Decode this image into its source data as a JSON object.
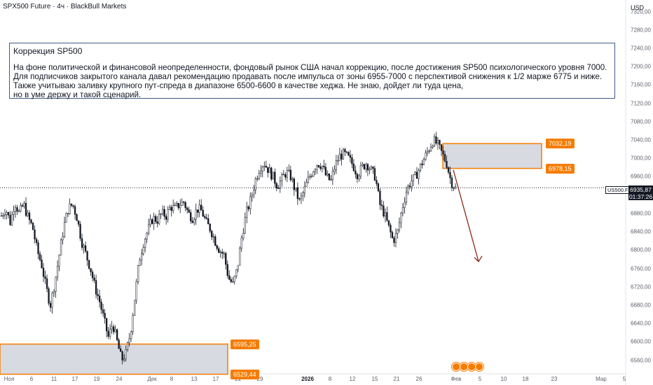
{
  "header": {
    "symbol_title": "SPX500 Future · 4ч · BlackBull Markets",
    "currency": "USD"
  },
  "note": {
    "title": "Коррекция SP500",
    "body": "На фоне политической и финансовой неопределенности, фондовый рынок США начал коррекцию, после достижения SP500 психологического уровня 7000. Для подписчиков закрытого канала давал рекомендацию продавать после импульса от зоны 6955-7000 с перспективой снижения к 1/2 марже 6775 и ниже. Также учитываю заливку крупного пут-спреда в диапазоне 6500-6600 в качестве хеджа. Не знаю, дойдет ли туда цена,\nно в уме держу и такой сценарий."
  },
  "zones": {
    "upper": {
      "top_label": "7032,19",
      "bottom_label": "6978,15",
      "top": 7032.19,
      "bottom": 6978.15
    },
    "lower": {
      "top_label": "6595,25",
      "bottom_label": "6529,44",
      "top": 6595.25,
      "bottom": 6529.44
    }
  },
  "last_price": {
    "symbol": "US500.F",
    "price": "6935,87",
    "countdown": "01:37:26",
    "value": 6935.87
  },
  "colors": {
    "zone_fill": "#d1d4dc",
    "zone_border": "#f57c00",
    "tag_bg": "#f57c00",
    "arrow": "#8b2a1a",
    "candle": "#131722",
    "note_border": "#3f5a8a"
  },
  "event_icons": [
    "event-icon",
    "event-icon",
    "event-icon",
    "event-icon"
  ],
  "chart_data": {
    "type": "candlestick",
    "timeframe": "4ч",
    "y_axis": {
      "ylim": [
        6535,
        7330
      ],
      "ticks": [
        "6560,00",
        "6600,00",
        "6640,00",
        "6680,00",
        "6720,00",
        "6760,00",
        "6800,00",
        "6840,00",
        "6880,00",
        "6920,00",
        "6960,00",
        "7000,00",
        "7040,00",
        "7080,00",
        "7120,00",
        "7160,00",
        "7200,00",
        "7240,00",
        "7280,00",
        "7320,00"
      ],
      "tick_values": [
        6560,
        6600,
        6640,
        6680,
        6720,
        6760,
        6800,
        6840,
        6880,
        6920,
        6960,
        7000,
        7040,
        7080,
        7120,
        7160,
        7200,
        7240,
        7280,
        7320
      ]
    },
    "x_axis": {
      "ticks": [
        "Ноя",
        "6",
        "11",
        "17",
        "19",
        "24",
        "Дек",
        "8",
        "13",
        "17",
        "22",
        "29",
        "2026",
        "8",
        "12",
        "15",
        "21",
        "26",
        "Фев",
        "5",
        "10",
        "18",
        "23",
        "Мар",
        "5"
      ],
      "bold": [
        false,
        false,
        false,
        false,
        false,
        false,
        false,
        false,
        false,
        false,
        false,
        false,
        true,
        false,
        false,
        false,
        false,
        false,
        false,
        false,
        false,
        false,
        false,
        false,
        false
      ]
    },
    "price_path": [
      6875,
      6890,
      6860,
      6905,
      6880,
      6900,
      6870,
      6850,
      6800,
      6770,
      6720,
      6680,
      6730,
      6790,
      6850,
      6890,
      6900,
      6870,
      6820,
      6790,
      6760,
      6720,
      6690,
      6650,
      6610,
      6640,
      6600,
      6560,
      6575,
      6620,
      6700,
      6780,
      6820,
      6845,
      6870,
      6865,
      6880,
      6875,
      6895,
      6890,
      6900,
      6905,
      6880,
      6870,
      6890,
      6885,
      6860,
      6845,
      6820,
      6800,
      6790,
      6740,
      6725,
      6760,
      6830,
      6880,
      6910,
      6950,
      6980,
      6990,
      6975,
      6960,
      6940,
      6955,
      6970,
      6960,
      6930,
      6905,
      6930,
      6955,
      6975,
      6990,
      6985,
      6960,
      6950,
      6985,
      7005,
      7010,
      7000,
      6985,
      6965,
      6980,
      6990,
      6975,
      6960,
      6900,
      6880,
      6850,
      6820,
      6840,
      6890,
      6930,
      6950,
      6960,
      6980,
      7000,
      7020,
      7040,
      7030,
      7010,
      6990,
      6950,
      6935
    ]
  }
}
